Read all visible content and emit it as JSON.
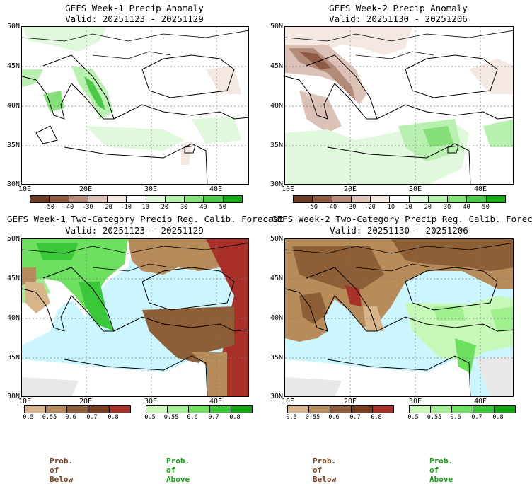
{
  "panels": [
    {
      "title": "GEFS Week-1 Precip Anomaly",
      "valid": "Valid: 20251123 - 20251129",
      "lat_labels": [
        "50N",
        "45N",
        "40N",
        "35N",
        "30N"
      ],
      "lon_labels": [
        "10E",
        "20E",
        "30E",
        "40E"
      ],
      "colorbar_ticks": [
        "-50",
        "-40",
        "-30",
        "-20",
        "-10",
        "10",
        "20",
        "30",
        "40",
        "50"
      ]
    },
    {
      "title": "GEFS Week-2 Precip Anomaly",
      "valid": "Valid: 20251130 - 20251206",
      "lat_labels": [
        "50N",
        "45N",
        "40N",
        "35N",
        "30N"
      ],
      "lon_labels": [
        "10E",
        "20E",
        "30E",
        "40E"
      ],
      "colorbar_ticks": [
        "-50",
        "-40",
        "-30",
        "-20",
        "-10",
        "10",
        "20",
        "30",
        "40",
        "50"
      ]
    },
    {
      "title": "GEFS Week-1 Two-Category Precip Reg. Calib. Forecast",
      "valid": "Valid: 20251123 - 20251129",
      "lat_labels": [
        "50N",
        "45N",
        "40N",
        "35N",
        "30N"
      ],
      "lon_labels": [
        "10E",
        "20E",
        "30E",
        "40E"
      ],
      "below_ticks": [
        "0.5",
        "0.55",
        "0.6",
        "0.7",
        "0.8"
      ],
      "above_ticks": [
        "0.5",
        "0.55",
        "0.6",
        "0.7",
        "0.8"
      ],
      "below_label": "Prob. of Below",
      "above_label": "Prob. of Above"
    },
    {
      "title": "GEFS Week-2 Two-Category Precip Reg. Calib. Forecast",
      "valid": "Valid: 20251130 - 20251206",
      "lat_labels": [
        "50N",
        "45N",
        "40N",
        "35N",
        "30N"
      ],
      "lon_labels": [
        "10E",
        "20E",
        "30E",
        "40E"
      ],
      "below_ticks": [
        "0.5",
        "0.55",
        "0.6",
        "0.7",
        "0.8"
      ],
      "above_ticks": [
        "0.5",
        "0.55",
        "0.6",
        "0.7",
        "0.8"
      ],
      "below_label": "Prob. of Below",
      "above_label": "Prob. of Above"
    }
  ],
  "colors": {
    "anomaly_scale": [
      "#6b3a24",
      "#8e5a42",
      "#b48a78",
      "#dcc2b6",
      "#f3e8e2",
      "#ffffff",
      "#e0f8dc",
      "#b8f0b0",
      "#86e07a",
      "#4cc848",
      "#18a818"
    ],
    "below_scale": [
      "#d8b48a",
      "#b88c5a",
      "#8e5e36",
      "#7a3e1c",
      "#a83028"
    ],
    "above_scale": [
      "#c6f8b8",
      "#a0f090",
      "#6ee060",
      "#38c838",
      "#10a810"
    ],
    "sea": "#ccf6ff",
    "no_data": "#e8e8e8",
    "below_label_color": "#7a3e1c",
    "above_label_color": "#10a010"
  }
}
